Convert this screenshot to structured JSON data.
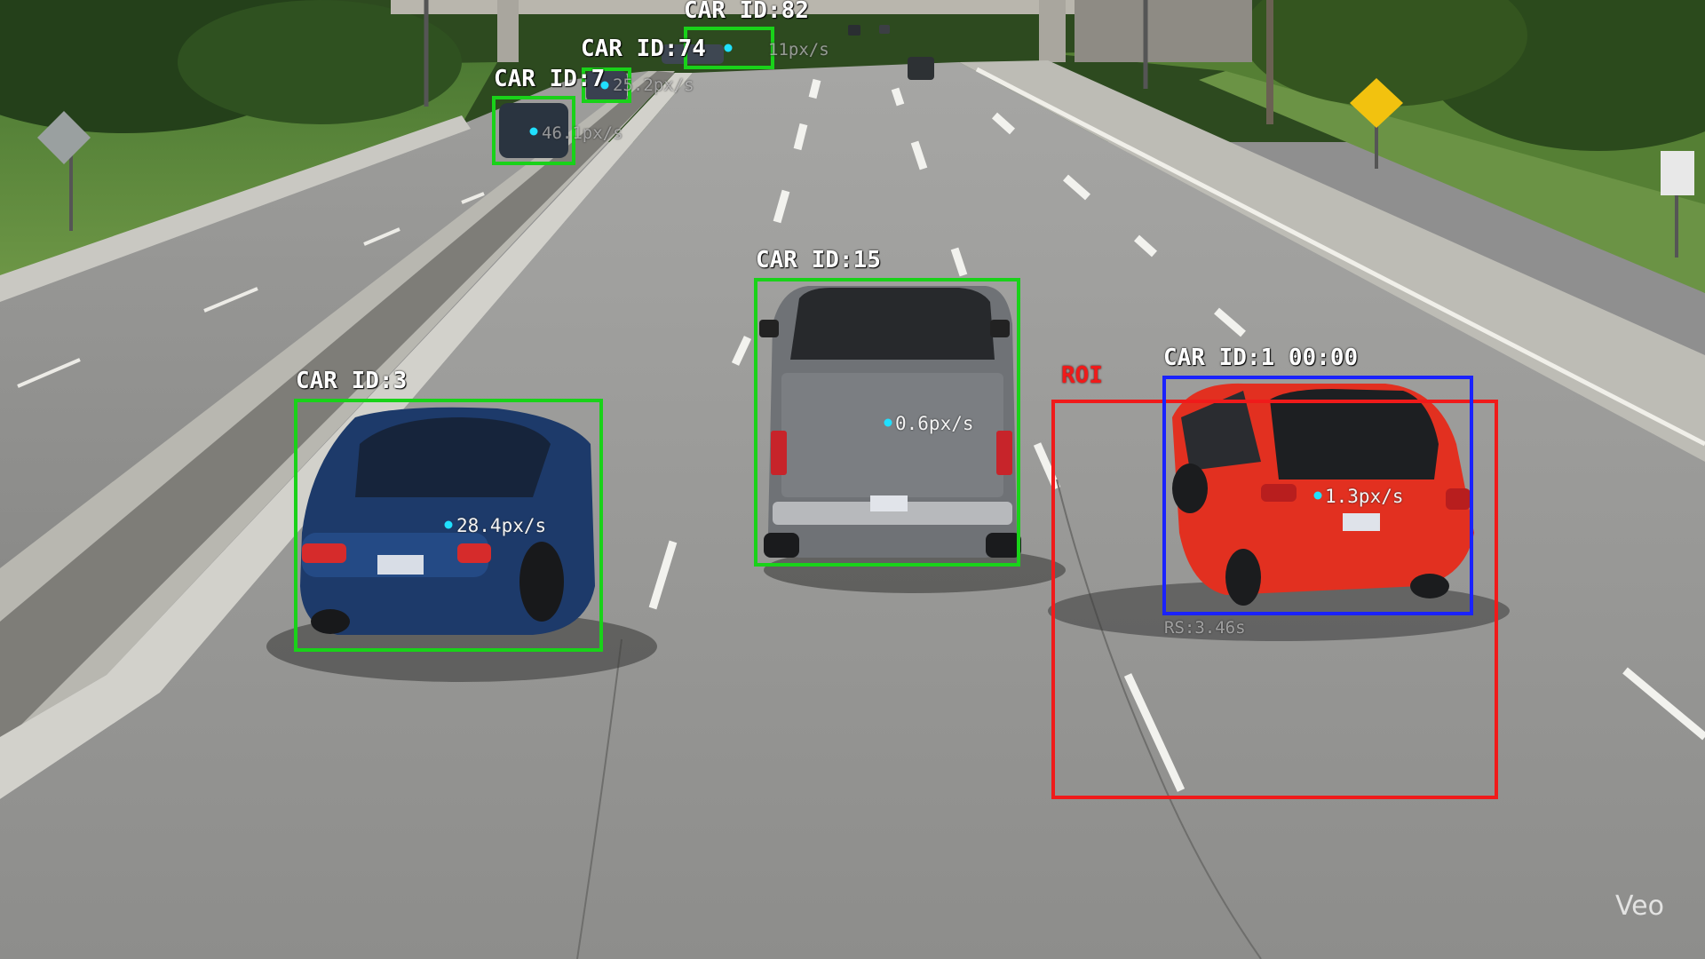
{
  "colors": {
    "box_green": "#19d219",
    "box_blue": "#1a22ff",
    "box_red": "#f01a1a",
    "centroid": "#20e0ff",
    "label": "#ffffff"
  },
  "detections": {
    "car_3": {
      "label": "CAR ID:3",
      "speed": "28.4px/s"
    },
    "truck": {
      "label": "CAR ID:15",
      "speed": "0.6px/s"
    },
    "car_1": {
      "label": "CAR ID:1 00:00",
      "speed": "1.3px/s",
      "rs": "RS:3.46s"
    },
    "car_7": {
      "label": "CAR ID:7",
      "speed": "46.1px/s"
    },
    "car_74": {
      "label": "CAR ID:74",
      "speed": "25.2px/s"
    },
    "car_82": {
      "label": "CAR ID:82",
      "speed": "11px/s"
    }
  },
  "roi": {
    "label": "ROI"
  },
  "watermark": "Veo"
}
